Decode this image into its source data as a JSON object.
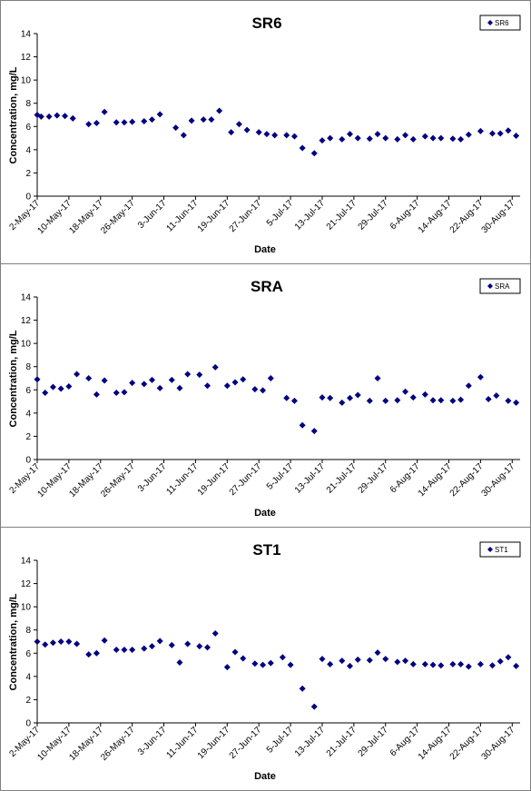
{
  "chart_data": [
    {
      "type": "scatter",
      "title": "SR6",
      "xlabel": "Date",
      "ylabel": "Concentration, mg/L",
      "ylim": [
        0,
        14
      ],
      "yticks": [
        0,
        2,
        4,
        6,
        8,
        10,
        12,
        14
      ],
      "x_range": [
        "2017-05-02",
        "2017-09-01"
      ],
      "xtick_labels": [
        "2-May-17",
        "10-May-17",
        "18-May-17",
        "26-May-17",
        "3-Jun-17",
        "11-Jun-17",
        "19-Jun-17",
        "27-Jun-17",
        "5-Jul-17",
        "13-Jul-17",
        "21-Jul-17",
        "29-Jul-17",
        "6-Aug-17",
        "14-Aug-17",
        "22-Aug-17",
        "30-Aug-17"
      ],
      "grid": false,
      "legend": "top-right",
      "marker": "diamond",
      "color": "#000080",
      "series": [
        {
          "name": "SR6",
          "x": [
            "2017-05-02",
            "2017-05-03",
            "2017-05-05",
            "2017-05-07",
            "2017-05-09",
            "2017-05-11",
            "2017-05-15",
            "2017-05-17",
            "2017-05-19",
            "2017-05-22",
            "2017-05-24",
            "2017-05-26",
            "2017-05-29",
            "2017-05-31",
            "2017-06-02",
            "2017-06-06",
            "2017-06-08",
            "2017-06-10",
            "2017-06-13",
            "2017-06-15",
            "2017-06-17",
            "2017-06-20",
            "2017-06-22",
            "2017-06-24",
            "2017-06-27",
            "2017-06-29",
            "2017-07-01",
            "2017-07-04",
            "2017-07-06",
            "2017-07-08",
            "2017-07-11",
            "2017-07-13",
            "2017-07-15",
            "2017-07-18",
            "2017-07-20",
            "2017-07-22",
            "2017-07-25",
            "2017-07-27",
            "2017-07-29",
            "2017-08-01",
            "2017-08-03",
            "2017-08-05",
            "2017-08-08",
            "2017-08-10",
            "2017-08-12",
            "2017-08-15",
            "2017-08-17",
            "2017-08-19",
            "2017-08-22",
            "2017-08-25",
            "2017-08-27",
            "2017-08-29",
            "2017-08-31"
          ],
          "y": [
            7.0,
            6.85,
            6.85,
            6.95,
            6.9,
            6.7,
            6.2,
            6.3,
            7.25,
            6.35,
            6.35,
            6.4,
            6.45,
            6.6,
            7.05,
            5.9,
            5.25,
            6.5,
            6.6,
            6.6,
            7.35,
            5.5,
            6.2,
            5.7,
            5.5,
            5.35,
            5.25,
            5.25,
            5.15,
            4.15,
            3.7,
            4.8,
            5.0,
            4.9,
            5.35,
            5.0,
            4.95,
            5.35,
            5.0,
            4.9,
            5.25,
            4.9,
            5.15,
            5.0,
            5.0,
            4.95,
            4.9,
            5.3,
            5.6,
            5.4,
            5.4,
            5.65,
            5.2
          ]
        }
      ]
    },
    {
      "type": "scatter",
      "title": "SRA",
      "xlabel": "Date",
      "ylabel": "Concentration, mg/L",
      "ylim": [
        0,
        14
      ],
      "yticks": [
        0,
        2,
        4,
        6,
        8,
        10,
        12,
        14
      ],
      "x_range": [
        "2017-05-02",
        "2017-09-01"
      ],
      "xtick_labels": [
        "2-May-17",
        "10-May-17",
        "18-May-17",
        "26-May-17",
        "3-Jun-17",
        "11-Jun-17",
        "19-Jun-17",
        "27-Jun-17",
        "5-Jul-17",
        "13-Jul-17",
        "21-Jul-17",
        "29-Jul-17",
        "6-Aug-17",
        "14-Aug-17",
        "22-Aug-17",
        "30-Aug-17"
      ],
      "grid": false,
      "legend": "top-right",
      "marker": "diamond",
      "color": "#000080",
      "series": [
        {
          "name": "SRA",
          "x": [
            "2017-05-02",
            "2017-05-04",
            "2017-05-06",
            "2017-05-08",
            "2017-05-10",
            "2017-05-12",
            "2017-05-15",
            "2017-05-17",
            "2017-05-19",
            "2017-05-22",
            "2017-05-24",
            "2017-05-26",
            "2017-05-29",
            "2017-05-31",
            "2017-06-02",
            "2017-06-05",
            "2017-06-07",
            "2017-06-09",
            "2017-06-12",
            "2017-06-14",
            "2017-06-16",
            "2017-06-19",
            "2017-06-21",
            "2017-06-23",
            "2017-06-26",
            "2017-06-28",
            "2017-06-30",
            "2017-07-04",
            "2017-07-06",
            "2017-07-08",
            "2017-07-11",
            "2017-07-13",
            "2017-07-15",
            "2017-07-18",
            "2017-07-20",
            "2017-07-22",
            "2017-07-25",
            "2017-07-27",
            "2017-07-29",
            "2017-08-01",
            "2017-08-03",
            "2017-08-05",
            "2017-08-08",
            "2017-08-10",
            "2017-08-12",
            "2017-08-15",
            "2017-08-17",
            "2017-08-19",
            "2017-08-22",
            "2017-08-24",
            "2017-08-26",
            "2017-08-29",
            "2017-08-31"
          ],
          "y": [
            6.9,
            5.75,
            6.25,
            6.1,
            6.3,
            7.35,
            7.0,
            5.6,
            6.8,
            5.75,
            5.8,
            6.6,
            6.5,
            6.85,
            6.15,
            6.85,
            6.15,
            7.35,
            7.3,
            6.35,
            7.95,
            6.35,
            6.65,
            6.9,
            6.05,
            5.95,
            7.0,
            5.3,
            5.05,
            2.95,
            2.45,
            5.35,
            5.3,
            4.9,
            5.3,
            5.55,
            5.05,
            7.0,
            5.05,
            5.1,
            5.85,
            5.35,
            5.6,
            5.1,
            5.1,
            5.05,
            5.15,
            6.35,
            7.1,
            5.2,
            5.5,
            5.05,
            4.9
          ]
        }
      ]
    },
    {
      "type": "scatter",
      "title": "ST1",
      "xlabel": "Date",
      "ylabel": "Concentration, mg/L",
      "ylim": [
        0,
        14
      ],
      "yticks": [
        0,
        2,
        4,
        6,
        8,
        10,
        12,
        14
      ],
      "x_range": [
        "2017-05-02",
        "2017-09-01"
      ],
      "xtick_labels": [
        "2-May-17",
        "10-May-17",
        "18-May-17",
        "26-May-17",
        "3-Jun-17",
        "11-Jun-17",
        "19-Jun-17",
        "27-Jun-17",
        "5-Jul-17",
        "13-Jul-17",
        "21-Jul-17",
        "29-Jul-17",
        "6-Aug-17",
        "14-Aug-17",
        "22-Aug-17",
        "30-Aug-17"
      ],
      "grid": false,
      "legend": "top-right",
      "marker": "diamond",
      "color": "#000080",
      "series": [
        {
          "name": "ST1",
          "x": [
            "2017-05-02",
            "2017-05-04",
            "2017-05-06",
            "2017-05-08",
            "2017-05-10",
            "2017-05-12",
            "2017-05-15",
            "2017-05-17",
            "2017-05-19",
            "2017-05-22",
            "2017-05-24",
            "2017-05-26",
            "2017-05-29",
            "2017-05-31",
            "2017-06-02",
            "2017-06-05",
            "2017-06-07",
            "2017-06-09",
            "2017-06-12",
            "2017-06-14",
            "2017-06-16",
            "2017-06-19",
            "2017-06-21",
            "2017-06-23",
            "2017-06-26",
            "2017-06-28",
            "2017-06-30",
            "2017-07-03",
            "2017-07-05",
            "2017-07-08",
            "2017-07-11",
            "2017-07-13",
            "2017-07-15",
            "2017-07-18",
            "2017-07-20",
            "2017-07-22",
            "2017-07-25",
            "2017-07-27",
            "2017-07-29",
            "2017-08-01",
            "2017-08-03",
            "2017-08-05",
            "2017-08-08",
            "2017-08-10",
            "2017-08-12",
            "2017-08-15",
            "2017-08-17",
            "2017-08-19",
            "2017-08-22",
            "2017-08-25",
            "2017-08-27",
            "2017-08-29",
            "2017-08-31"
          ],
          "y": [
            7.0,
            6.75,
            6.9,
            7.0,
            7.0,
            6.8,
            5.9,
            6.0,
            7.1,
            6.3,
            6.3,
            6.3,
            6.4,
            6.6,
            7.05,
            6.7,
            5.2,
            6.8,
            6.6,
            6.5,
            7.7,
            4.8,
            6.1,
            5.55,
            5.1,
            5.0,
            5.15,
            5.65,
            5.0,
            2.95,
            1.4,
            5.5,
            5.05,
            5.35,
            4.9,
            5.45,
            5.4,
            6.05,
            5.5,
            5.25,
            5.35,
            5.05,
            5.05,
            5.0,
            4.95,
            5.05,
            5.05,
            4.85,
            5.05,
            4.95,
            5.3,
            5.65,
            4.9
          ]
        }
      ]
    }
  ]
}
